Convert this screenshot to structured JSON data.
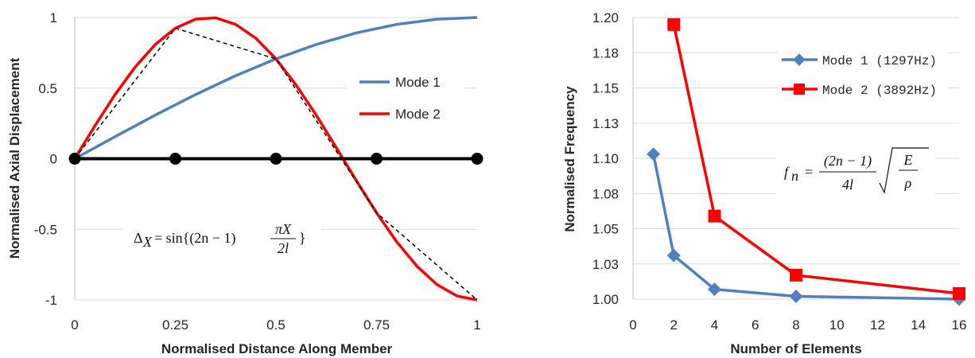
{
  "chart_data": [
    {
      "type": "line",
      "xlabel": "Normalised Distance Along Member",
      "ylabel": "Normalised Axial Displacement",
      "xlim": [
        0,
        1
      ],
      "ylim": [
        -1,
        1
      ],
      "x_ticks": [
        "0",
        "0.25",
        "0.5",
        "0.75",
        "1"
      ],
      "y_ticks": [
        "1",
        "0.5",
        "0",
        "-0.5",
        "-1"
      ],
      "grid": "horizontal",
      "legend_position": "right-middle",
      "series": [
        {
          "name": "Mode 1",
          "color": "#4f81bd",
          "x": [
            0,
            0.1,
            0.2,
            0.3,
            0.4,
            0.5,
            0.6,
            0.7,
            0.8,
            0.9,
            1.0
          ],
          "y": [
            0,
            0.156,
            0.309,
            0.454,
            0.588,
            0.707,
            0.809,
            0.891,
            0.951,
            0.988,
            1.0
          ]
        },
        {
          "name": "Mode 2",
          "color": "#ff0000",
          "x": [
            0,
            0.05,
            0.1,
            0.15,
            0.2,
            0.25,
            0.3,
            0.35,
            0.4,
            0.45,
            0.5,
            0.55,
            0.6,
            0.65,
            0.7,
            0.75,
            0.8,
            0.85,
            0.9,
            0.95,
            1.0
          ],
          "y": [
            0,
            0.233,
            0.454,
            0.649,
            0.809,
            0.924,
            0.988,
            0.998,
            0.951,
            0.853,
            0.707,
            0.522,
            0.309,
            0.078,
            -0.156,
            -0.383,
            -0.588,
            -0.76,
            -0.891,
            -0.972,
            -1.0
          ]
        },
        {
          "style": "dashed",
          "color": "#000000",
          "x": [
            0,
            0.25,
            0.5,
            0.75,
            1.0
          ],
          "y": [
            0,
            0.924,
            0.707,
            -0.383,
            -1.0
          ]
        },
        {
          "style": "thick-markers",
          "color": "#000000",
          "x": [
            0,
            0.25,
            0.5,
            0.75,
            1.0
          ],
          "y": [
            0,
            0,
            0,
            0,
            0
          ]
        }
      ],
      "annotation": {
        "lhs": "Δ",
        "lhs_sub": "X",
        "rhs": "= sin{(2n − 1)",
        "frac_num": "πX",
        "frac_den": "2l",
        "close": "}"
      }
    },
    {
      "type": "line",
      "xlabel": "Number of Elements",
      "ylabel": "Normalised Frequency",
      "xlim": [
        0,
        16
      ],
      "ylim": [
        1.0,
        1.2
      ],
      "x_ticks": [
        "0",
        "2",
        "4",
        "6",
        "8",
        "10",
        "12",
        "14",
        "16"
      ],
      "y_ticks": [
        "1.20",
        "1.18",
        "1.15",
        "1.13",
        "1.10",
        "1.08",
        "1.05",
        "1.03",
        "1.00"
      ],
      "grid": "horizontal",
      "legend_position": "top-right",
      "series": [
        {
          "name": "Mode 1 (1297Hz)",
          "color": "#4f81bd",
          "marker": "diamond",
          "x": [
            1,
            2,
            4,
            8,
            16
          ],
          "y": [
            1.103,
            1.031,
            1.007,
            1.002,
            1.0
          ]
        },
        {
          "name": "Mode 2 (3892Hz)",
          "color": "#ff0000",
          "marker": "square",
          "x": [
            2,
            4,
            8,
            16
          ],
          "y": [
            1.195,
            1.059,
            1.017,
            1.004
          ]
        }
      ],
      "annotation": {
        "lhs": "f",
        "lhs_sub": "n",
        "eq": "=",
        "frac_num": "(2n − 1)",
        "frac_den": "4l",
        "root_num": "E",
        "root_den": "ρ"
      }
    }
  ]
}
